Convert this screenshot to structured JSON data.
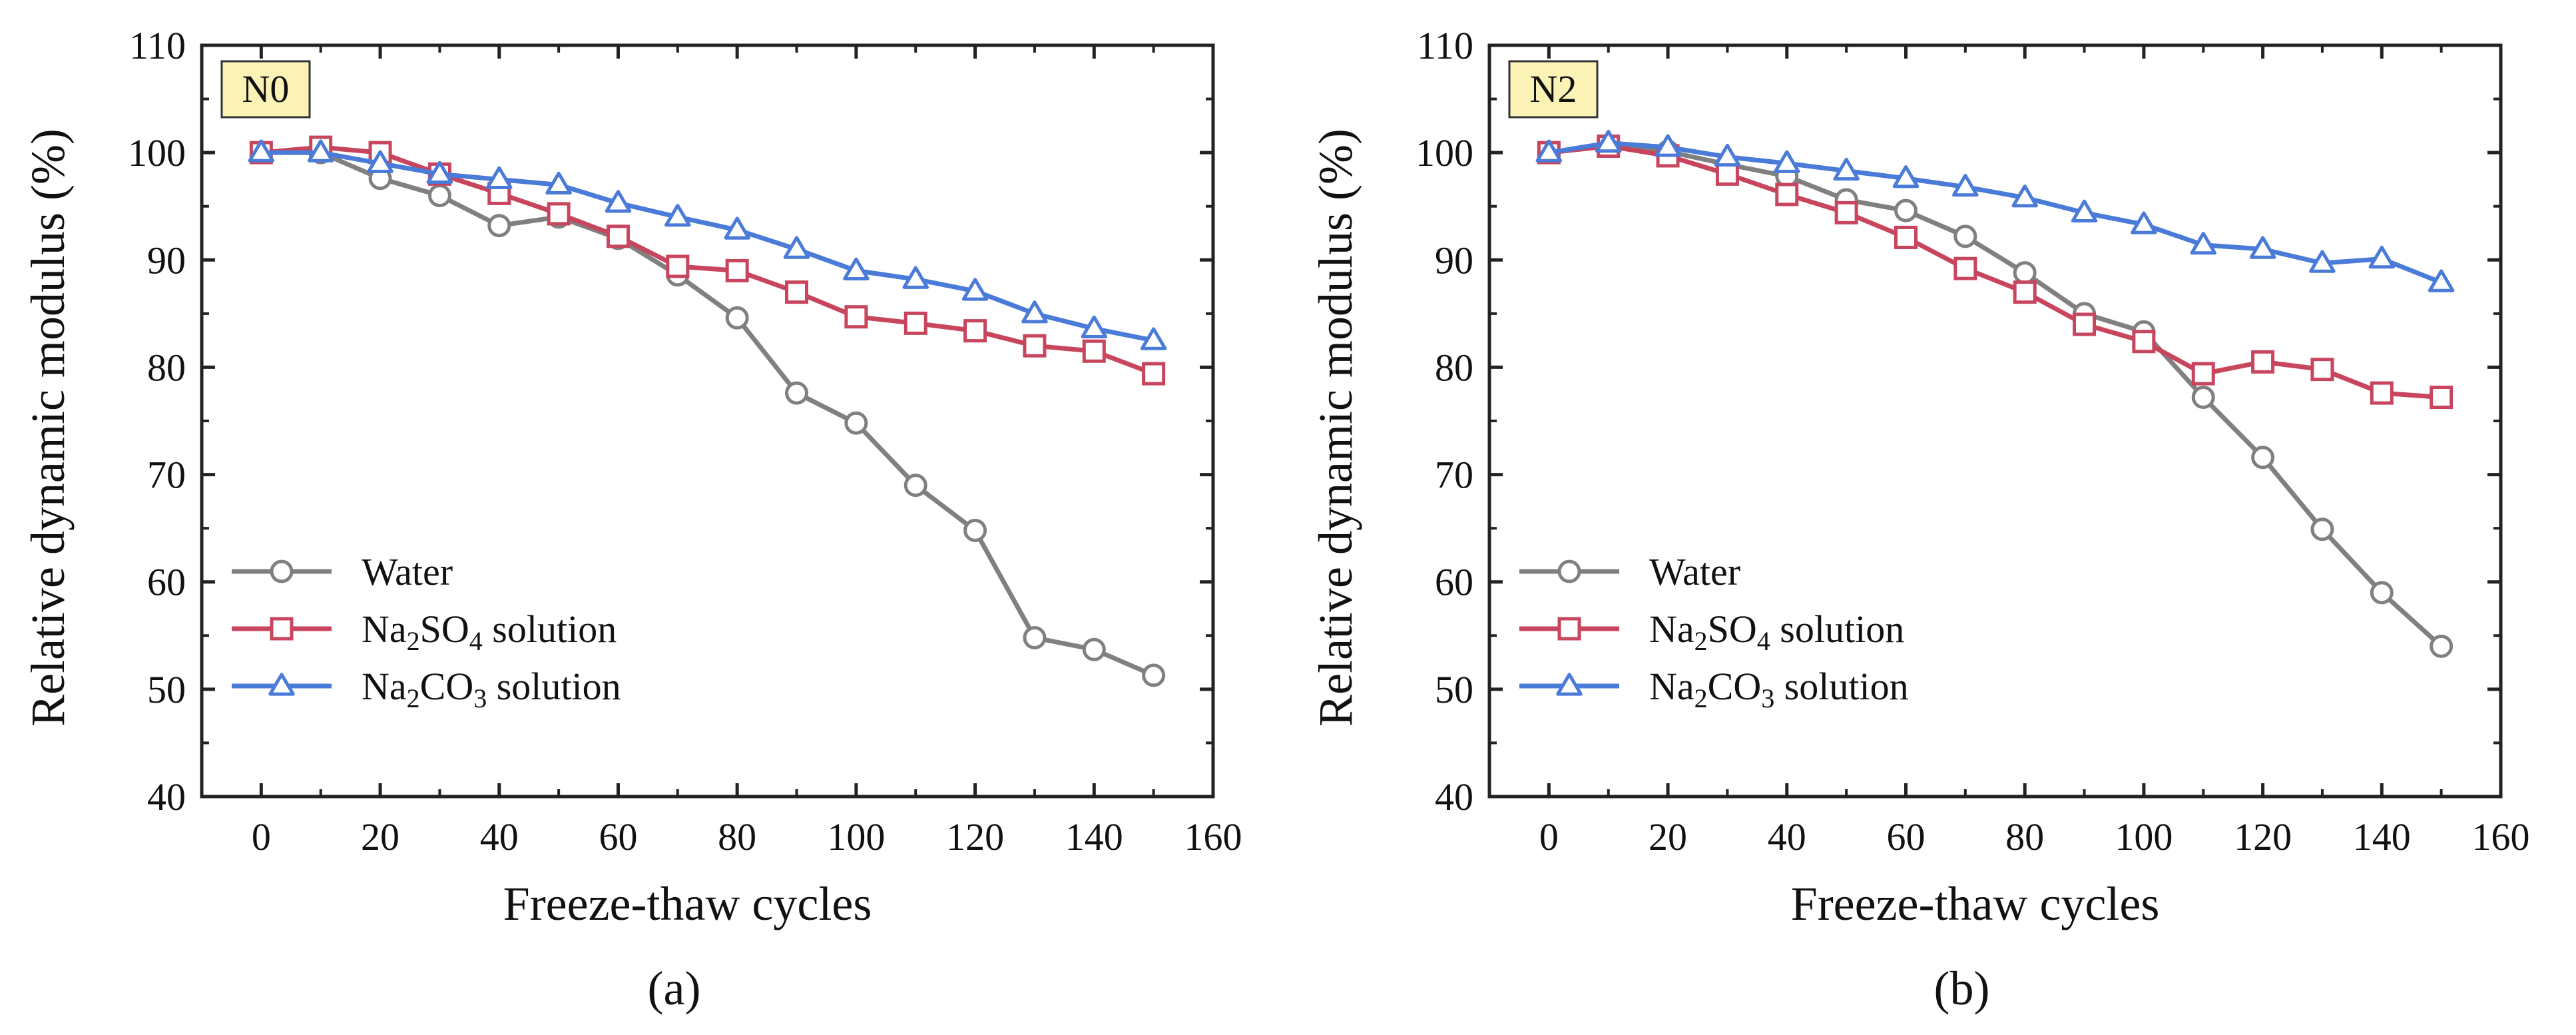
{
  "chart_data": [
    {
      "type": "line",
      "panel_label": "N0",
      "caption": "(a)",
      "xlabel": "Freeze-thaw cycles",
      "ylabel": "Relative dynamic modulus (%)",
      "xlim": [
        -10,
        160
      ],
      "ylim": [
        40,
        110
      ],
      "xticks": [
        0,
        20,
        40,
        60,
        80,
        100,
        120,
        140,
        160
      ],
      "yticks": [
        40,
        50,
        60,
        70,
        80,
        90,
        100,
        110
      ],
      "grid": false,
      "legend_position": "bottom-left",
      "x": [
        0,
        10,
        20,
        30,
        40,
        50,
        60,
        70,
        80,
        90,
        100,
        110,
        120,
        130,
        140,
        150
      ],
      "series": [
        {
          "name": "Water",
          "legend_main": "Water",
          "legend_sub": "",
          "legend_tail": "",
          "color": "#808080",
          "marker": "circle",
          "values": [
            100.0,
            100.0,
            97.6,
            96.0,
            93.2,
            94.0,
            92.0,
            88.6,
            84.6,
            77.6,
            74.8,
            69.0,
            64.8,
            54.8,
            53.7,
            51.3
          ]
        },
        {
          "name": "Na2SO4 solution",
          "legend_main": "Na",
          "legend_sub": "2",
          "legend_tail": "SO",
          "legend_sub2": "4",
          "legend_tail2": " solution",
          "color": "#c8455e",
          "marker": "square",
          "values": [
            100.0,
            100.5,
            100.0,
            98.0,
            96.2,
            94.3,
            92.2,
            89.4,
            89.0,
            87.0,
            84.7,
            84.1,
            83.4,
            82.0,
            81.5,
            79.4
          ]
        },
        {
          "name": "Na2CO3 solution",
          "legend_main": "Na",
          "legend_sub": "2",
          "legend_tail": "CO",
          "legend_sub2": "3",
          "legend_tail2": " solution",
          "color": "#4a7bd8",
          "marker": "triangle",
          "values": [
            100.0,
            100.0,
            99.0,
            98.0,
            97.5,
            97.0,
            95.3,
            94.0,
            92.8,
            91.0,
            89.0,
            88.2,
            87.1,
            85.0,
            83.6,
            82.5
          ]
        }
      ]
    },
    {
      "type": "line",
      "panel_label": "N2",
      "caption": "(b)",
      "xlabel": "Freeze-thaw cycles",
      "ylabel": "Relative dynamic modulus (%)",
      "xlim": [
        -10,
        160
      ],
      "ylim": [
        40,
        110
      ],
      "xticks": [
        0,
        20,
        40,
        60,
        80,
        100,
        120,
        140,
        160
      ],
      "yticks": [
        40,
        50,
        60,
        70,
        80,
        90,
        100,
        110
      ],
      "grid": false,
      "legend_position": "bottom-left",
      "x": [
        0,
        10,
        20,
        30,
        40,
        50,
        60,
        70,
        80,
        90,
        100,
        110,
        120,
        130,
        140,
        150
      ],
      "series": [
        {
          "name": "Water",
          "legend_main": "Water",
          "legend_sub": "",
          "legend_tail": "",
          "color": "#808080",
          "marker": "circle",
          "values": [
            100.0,
            100.6,
            100.1,
            98.9,
            97.8,
            95.6,
            94.6,
            92.2,
            88.8,
            85.0,
            83.3,
            77.2,
            71.6,
            64.9,
            59.0,
            54.0
          ]
        },
        {
          "name": "Na2SO4 solution",
          "legend_main": "Na",
          "legend_sub": "2",
          "legend_tail": "SO",
          "legend_sub2": "4",
          "legend_tail2": " solution",
          "color": "#c8455e",
          "marker": "square",
          "values": [
            100.0,
            100.6,
            99.7,
            98.0,
            96.1,
            94.4,
            92.1,
            89.2,
            87.0,
            84.0,
            82.4,
            79.4,
            80.5,
            79.8,
            77.6,
            77.2
          ]
        },
        {
          "name": "Na2CO3 solution",
          "legend_main": "Na",
          "legend_sub": "2",
          "legend_tail": "CO",
          "legend_sub2": "3",
          "legend_tail2": " solution",
          "color": "#4a7bd8",
          "marker": "triangle",
          "values": [
            100.0,
            100.9,
            100.5,
            99.6,
            99.0,
            98.3,
            97.6,
            96.8,
            95.8,
            94.4,
            93.3,
            91.4,
            91.0,
            89.7,
            90.1,
            87.9
          ]
        }
      ]
    }
  ]
}
